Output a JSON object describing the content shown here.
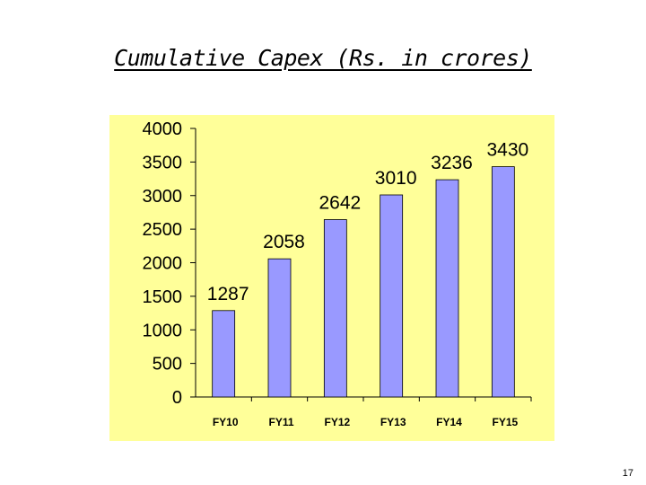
{
  "slide": {
    "title": "Cumulative Capex (Rs. in crores)",
    "page_number": "17"
  },
  "chart_data": {
    "type": "bar",
    "title": "",
    "xlabel": "",
    "ylabel": "",
    "categories": [
      "FY10",
      "FY11",
      "FY12",
      "FY13",
      "FY14",
      "FY15"
    ],
    "values": [
      1287,
      2058,
      2642,
      3010,
      3236,
      3430
    ],
    "ylim": [
      0,
      4000
    ],
    "yticks": [
      0,
      500,
      1000,
      1500,
      2000,
      2500,
      3000,
      3500,
      4000
    ],
    "data_labels": true,
    "grid": false,
    "legend": "none",
    "colors": {
      "plot_background": "#FFFF99",
      "bar_fill": "#9999FF",
      "bar_stroke": "#000000"
    }
  }
}
